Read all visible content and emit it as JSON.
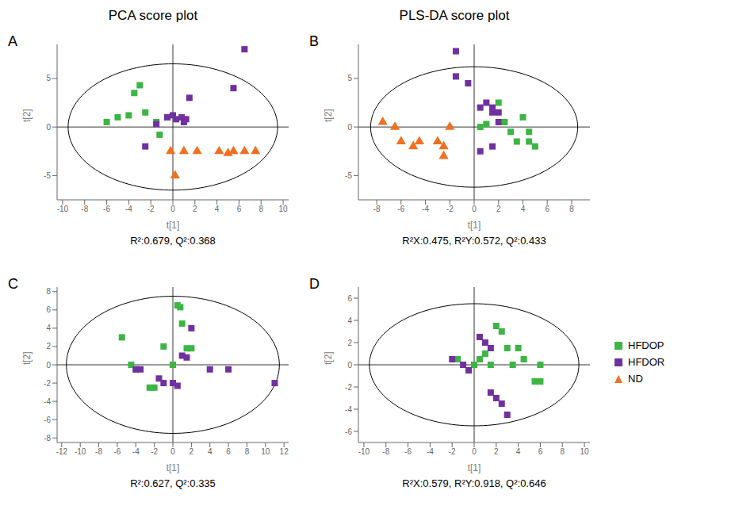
{
  "chart_data": [
    {
      "type": "scatter",
      "title": "PCA score plot",
      "panel_label": "A",
      "annotation": "R²:0.679, Q²:0.368",
      "xlabel": "t[1]",
      "ylabel": "t[2]",
      "xlim": [
        -10.5,
        10.5
      ],
      "ylim": [
        -7.5,
        8.5
      ],
      "xticks": [
        -10,
        -8,
        -6,
        -4,
        -2,
        0,
        2,
        4,
        6,
        8,
        10
      ],
      "yticks": [
        -5,
        0,
        5
      ],
      "grid": false,
      "ellipse": {
        "cx": 0,
        "cy": 0,
        "rx": 9.5,
        "ry": 6.5
      },
      "hlines": [
        0
      ],
      "vlines": [
        0
      ],
      "series": [
        {
          "name": "HFDOP",
          "color": "#3cb544",
          "marker": "square",
          "values": [
            [
              -6.0,
              0.5
            ],
            [
              -5.0,
              1.0
            ],
            [
              -4.0,
              1.2
            ],
            [
              -3.5,
              3.5
            ],
            [
              -3.0,
              4.3
            ],
            [
              -2.5,
              1.5
            ],
            [
              -1.5,
              0.5
            ],
            [
              -1.2,
              -0.8
            ],
            [
              -0.5,
              1.0
            ]
          ]
        },
        {
          "name": "HFDOR",
          "color": "#7030a0",
          "marker": "square",
          "values": [
            [
              -2.5,
              -2.0
            ],
            [
              -1.5,
              0.3
            ],
            [
              -0.5,
              1.0
            ],
            [
              0.0,
              1.2
            ],
            [
              0.3,
              0.8
            ],
            [
              0.8,
              1.0
            ],
            [
              1.0,
              0.5
            ],
            [
              1.2,
              0.8
            ],
            [
              6.5,
              8.0
            ],
            [
              5.5,
              4.0
            ],
            [
              1.5,
              3.0
            ]
          ]
        },
        {
          "name": "ND",
          "color": "#f07020",
          "marker": "triangle",
          "values": [
            [
              -0.2,
              -2.5
            ],
            [
              0.2,
              -5.0
            ],
            [
              1.0,
              -2.5
            ],
            [
              2.2,
              -2.5
            ],
            [
              4.2,
              -2.5
            ],
            [
              5.0,
              -2.7
            ],
            [
              5.5,
              -2.5
            ],
            [
              6.5,
              -2.5
            ],
            [
              7.5,
              -2.5
            ]
          ]
        }
      ]
    },
    {
      "type": "scatter",
      "title": "PLS-DA score plot",
      "panel_label": "B",
      "annotation": "R²X:0.475, R²Y:0.572, Q²:0.433",
      "xlabel": "t[1]",
      "ylabel": "t[2]",
      "xlim": [
        -9.5,
        9.5
      ],
      "ylim": [
        -7.5,
        8.5
      ],
      "xticks": [
        -8,
        -6,
        -4,
        -2,
        0,
        2,
        4,
        6,
        8
      ],
      "yticks": [
        -5,
        0,
        5
      ],
      "grid": false,
      "ellipse": {
        "cx": 0,
        "cy": 0,
        "rx": 8.5,
        "ry": 6.2
      },
      "hlines": [
        0
      ],
      "vlines": [
        0
      ],
      "series": [
        {
          "name": "HFDOP",
          "color": "#3cb544",
          "marker": "square",
          "values": [
            [
              0.5,
              0.0
            ],
            [
              1.0,
              0.3
            ],
            [
              2.0,
              2.5
            ],
            [
              2.5,
              0.5
            ],
            [
              3.0,
              -0.5
            ],
            [
              3.5,
              -1.5
            ],
            [
              4.0,
              1.0
            ],
            [
              4.5,
              -0.5
            ],
            [
              4.5,
              -1.5
            ],
            [
              5.0,
              -2.0
            ]
          ]
        },
        {
          "name": "HFDOR",
          "color": "#7030a0",
          "marker": "square",
          "values": [
            [
              -1.5,
              7.8
            ],
            [
              -1.5,
              5.2
            ],
            [
              -0.5,
              4.5
            ],
            [
              0.5,
              2.0
            ],
            [
              1.0,
              2.5
            ],
            [
              1.5,
              2.0
            ],
            [
              1.5,
              1.5
            ],
            [
              2.0,
              1.5
            ],
            [
              2.0,
              0.5
            ],
            [
              1.5,
              -2.0
            ],
            [
              0.5,
              -2.5
            ]
          ]
        },
        {
          "name": "ND",
          "color": "#f07020",
          "marker": "triangle",
          "values": [
            [
              -7.5,
              0.5
            ],
            [
              -6.5,
              0.0
            ],
            [
              -6.0,
              -1.5
            ],
            [
              -5.0,
              -2.0
            ],
            [
              -4.5,
              -1.5
            ],
            [
              -3.0,
              -1.5
            ],
            [
              -2.5,
              -2.0
            ],
            [
              -2.0,
              0.0
            ],
            [
              -2.5,
              -3.0
            ]
          ]
        }
      ]
    },
    {
      "type": "scatter",
      "panel_label": "C",
      "annotation": "R²:0.627, Q²:0.335",
      "xlabel": "t[1]",
      "ylabel": "t[2]",
      "xlim": [
        -12.5,
        12.5
      ],
      "ylim": [
        -8.5,
        8.5
      ],
      "xticks": [
        -12,
        -10,
        -8,
        -6,
        -4,
        -2,
        0,
        2,
        4,
        6,
        8,
        10,
        12
      ],
      "yticks": [
        -8,
        -6,
        -4,
        -2,
        0,
        2,
        4,
        6,
        8
      ],
      "grid": false,
      "ellipse": {
        "cx": 0,
        "cy": 0,
        "rx": 11.5,
        "ry": 7.5
      },
      "hlines": [
        0
      ],
      "vlines": [
        0
      ],
      "series": [
        {
          "name": "HFDOP",
          "color": "#3cb544",
          "marker": "square",
          "values": [
            [
              -5.5,
              3.0
            ],
            [
              -4.5,
              0.0
            ],
            [
              -4.0,
              -0.5
            ],
            [
              -2.5,
              -2.5
            ],
            [
              -2.0,
              -2.5
            ],
            [
              -1.0,
              2.0
            ],
            [
              0.0,
              0.0
            ],
            [
              0.5,
              6.5
            ],
            [
              0.8,
              6.3
            ],
            [
              1.0,
              4.5
            ],
            [
              1.5,
              1.8
            ],
            [
              2.0,
              1.8
            ]
          ]
        },
        {
          "name": "HFDOR",
          "color": "#7030a0",
          "marker": "square",
          "values": [
            [
              -4.0,
              -0.5
            ],
            [
              -3.5,
              -0.5
            ],
            [
              -1.5,
              -1.5
            ],
            [
              -1.0,
              -2.0
            ],
            [
              0.0,
              -2.0
            ],
            [
              0.5,
              -2.3
            ],
            [
              1.0,
              1.0
            ],
            [
              1.5,
              0.8
            ],
            [
              2.0,
              4.0
            ],
            [
              4.0,
              -0.5
            ],
            [
              6.0,
              -0.5
            ],
            [
              11.0,
              -2.0
            ]
          ]
        }
      ]
    },
    {
      "type": "scatter",
      "panel_label": "D",
      "annotation": "R²X:0.579, R²Y:0.918, Q²:0.646",
      "xlabel": "t[1]",
      "ylabel": "t[2]",
      "xlim": [
        -10.5,
        10.5
      ],
      "ylim": [
        -7.0,
        7.0
      ],
      "xticks": [
        -10,
        -8,
        -6,
        -4,
        -2,
        0,
        2,
        4,
        6,
        8,
        10
      ],
      "yticks": [
        -6,
        -4,
        -2,
        0,
        2,
        4,
        6
      ],
      "grid": false,
      "ellipse": {
        "cx": 0,
        "cy": 0,
        "rx": 9.5,
        "ry": 5.5
      },
      "hlines": [
        0
      ],
      "vlines": [
        0
      ],
      "legend": "right",
      "series": [
        {
          "name": "HFDOP",
          "color": "#3cb544",
          "marker": "square",
          "values": [
            [
              -1.5,
              0.5
            ],
            [
              0.0,
              0.0
            ],
            [
              0.5,
              0.5
            ],
            [
              1.0,
              1.0
            ],
            [
              1.5,
              0.0
            ],
            [
              2.0,
              3.5
            ],
            [
              2.5,
              3.0
            ],
            [
              3.0,
              1.5
            ],
            [
              3.5,
              0.0
            ],
            [
              4.0,
              1.5
            ],
            [
              4.5,
              0.5
            ],
            [
              5.5,
              -1.5
            ],
            [
              6.0,
              -1.5
            ],
            [
              6.0,
              0.0
            ]
          ]
        },
        {
          "name": "HFDOR",
          "color": "#7030a0",
          "marker": "square",
          "values": [
            [
              -2.0,
              0.5
            ],
            [
              -1.0,
              0.0
            ],
            [
              -0.5,
              -0.5
            ],
            [
              0.5,
              2.5
            ],
            [
              1.0,
              2.0
            ],
            [
              1.5,
              1.5
            ],
            [
              1.5,
              -2.5
            ],
            [
              2.0,
              -3.0
            ],
            [
              2.5,
              -3.5
            ],
            [
              3.0,
              -4.5
            ]
          ]
        },
        {
          "name": "ND",
          "color": "#f07020",
          "marker": "triangle",
          "values": []
        }
      ]
    }
  ]
}
